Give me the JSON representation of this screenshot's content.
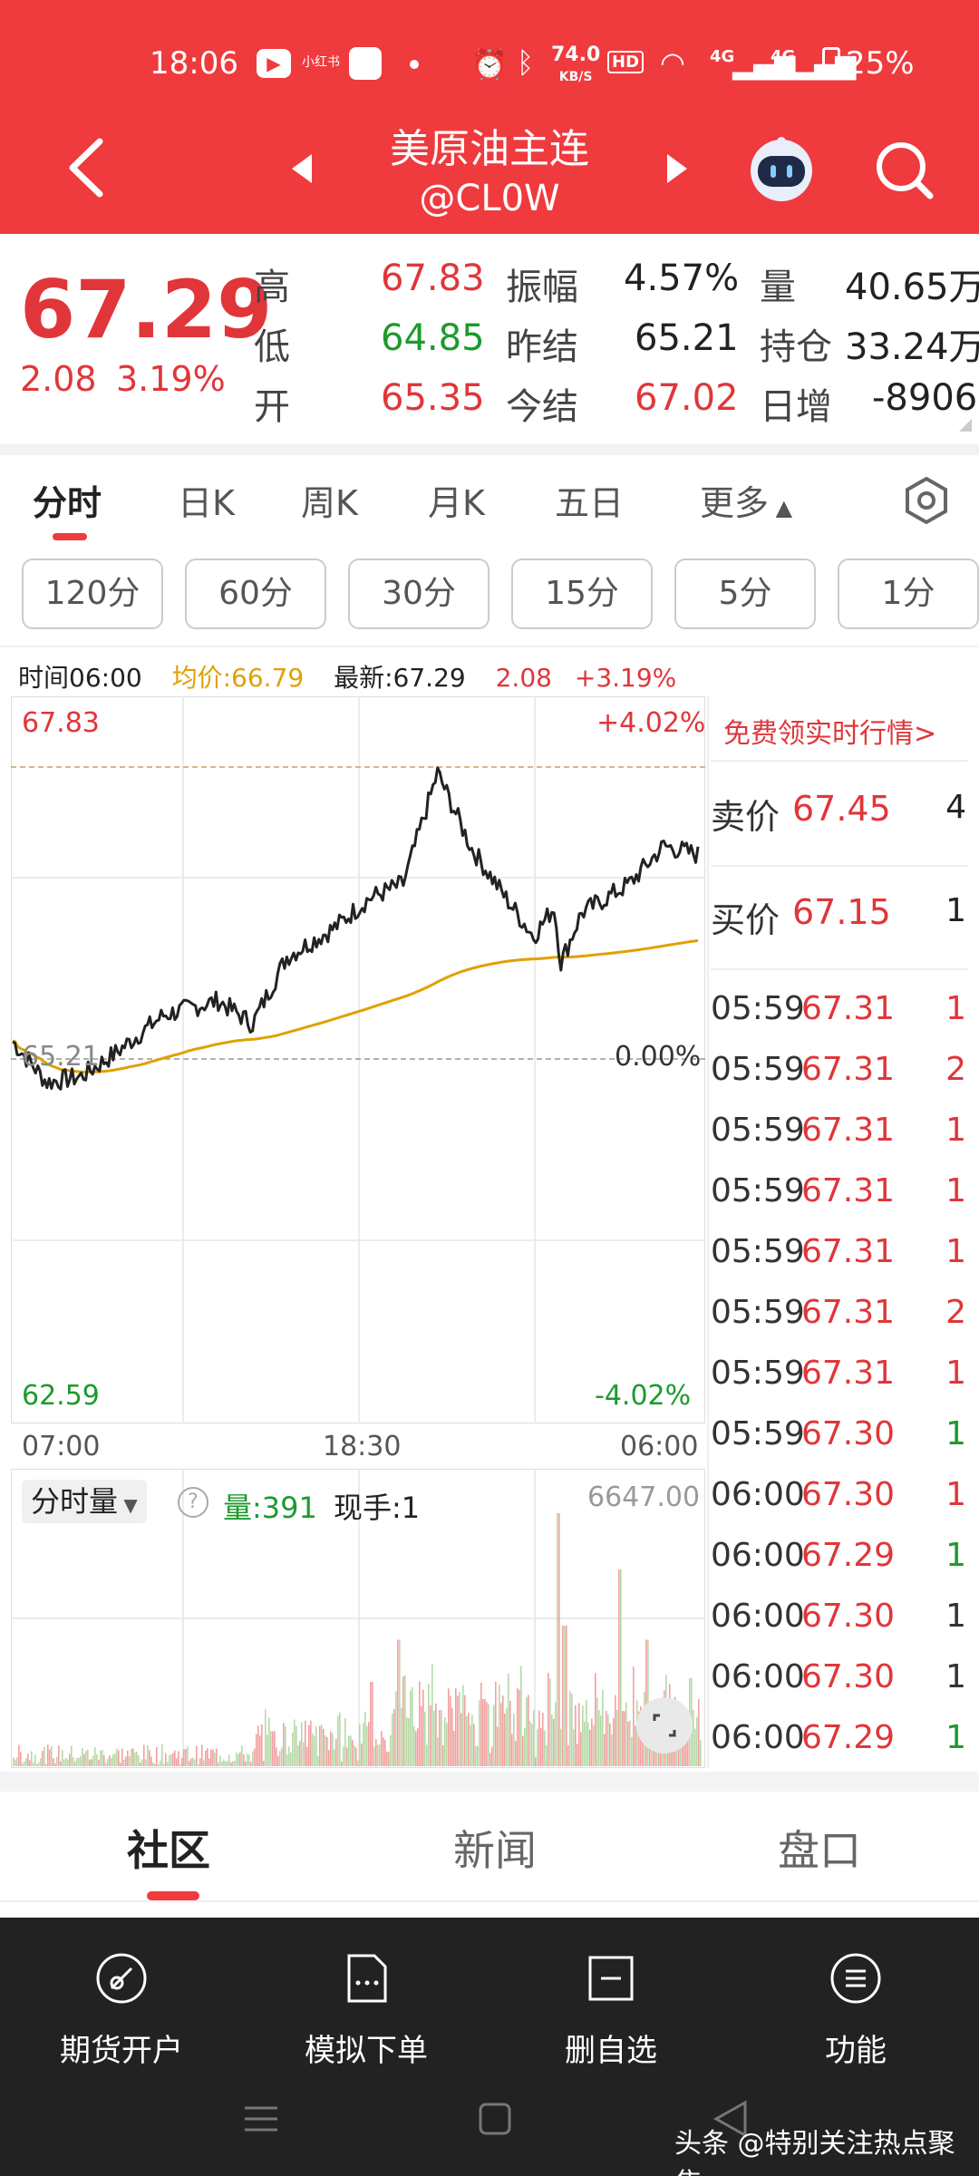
{
  "status_bar": {
    "time": "18:06",
    "mini_label": "小红书",
    "net_speed_value": "74.0",
    "net_speed_unit": "KB/S",
    "hd": "HD",
    "net1": "4G",
    "net2": "4G",
    "battery": "25%"
  },
  "header": {
    "title": "美原油主连",
    "code": "@CL0W"
  },
  "quote": {
    "price": "67.29",
    "change": "2.08",
    "change_pct": "3.19%",
    "high_label": "高",
    "high": "67.83",
    "low_label": "低",
    "low": "64.85",
    "open_label": "开",
    "open": "65.35",
    "amp_label": "振幅",
    "amp": "4.57%",
    "prev_settle_label": "昨结",
    "prev_settle": "65.21",
    "settle_label": "今结",
    "settle": "67.02",
    "vol_label": "量",
    "vol": "40.65万",
    "oi_label": "持仓",
    "oi": "33.24万",
    "oi_chg_label": "日增",
    "oi_chg": "-8906"
  },
  "tabs": [
    "分时",
    "日K",
    "周K",
    "月K",
    "五日",
    "更多"
  ],
  "intervals": [
    "120分",
    "60分",
    "30分",
    "15分",
    "5分",
    "1分"
  ],
  "info_line": {
    "time": "时间06:00",
    "avg": "均价:66.79",
    "latest": "最新:67.29",
    "chg": "2.08",
    "pct": "+3.19%"
  },
  "chart_labels": {
    "top": "67.83",
    "top_pct": "+4.02%",
    "mid": "65.21",
    "mid_pct": "0.00%",
    "bottom": "62.59",
    "bottom_pct": "-4.02%",
    "x": [
      "07:00",
      "18:30",
      "06:00"
    ]
  },
  "volume": {
    "selector": "分时量",
    "help": "?",
    "vol": "量:391",
    "hand": "现手:1",
    "max": "6647.00"
  },
  "orderbook": {
    "promo": "免费领实时行情>",
    "ask_label": "卖价",
    "ask": "67.45",
    "ask_vol": "4",
    "bid_label": "买价",
    "bid": "67.15",
    "bid_vol": "1",
    "trades": [
      {
        "t": "05:59",
        "p": "67.31",
        "v": "1",
        "c": "#e0363a"
      },
      {
        "t": "05:59",
        "p": "67.31",
        "v": "2",
        "c": "#e0363a"
      },
      {
        "t": "05:59",
        "p": "67.31",
        "v": "1",
        "c": "#e0363a"
      },
      {
        "t": "05:59",
        "p": "67.31",
        "v": "1",
        "c": "#e0363a"
      },
      {
        "t": "05:59",
        "p": "67.31",
        "v": "1",
        "c": "#e0363a"
      },
      {
        "t": "05:59",
        "p": "67.31",
        "v": "2",
        "c": "#e0363a"
      },
      {
        "t": "05:59",
        "p": "67.31",
        "v": "1",
        "c": "#e0363a"
      },
      {
        "t": "05:59",
        "p": "67.30",
        "v": "1",
        "c": "#1c9a2c"
      },
      {
        "t": "06:00",
        "p": "67.30",
        "v": "1",
        "c": "#e0363a"
      },
      {
        "t": "06:00",
        "p": "67.29",
        "v": "1",
        "c": "#1c9a2c"
      },
      {
        "t": "06:00",
        "p": "67.30",
        "v": "1",
        "c": "#333333"
      },
      {
        "t": "06:00",
        "p": "67.30",
        "v": "1",
        "c": "#333333"
      },
      {
        "t": "06:00",
        "p": "67.29",
        "v": "1",
        "c": "#1c9a2c"
      }
    ]
  },
  "bottom_tabs": [
    "社区",
    "新闻",
    "盘口"
  ],
  "dock": [
    "期货开户",
    "模拟下单",
    "删自选",
    "功能"
  ],
  "watermark": "头条 @特别关注热点聚焦",
  "colors": {
    "brand": "#ef3a3e",
    "up": "#e0363a",
    "down": "#1c9a2c",
    "avg_line": "#e0a100"
  }
}
